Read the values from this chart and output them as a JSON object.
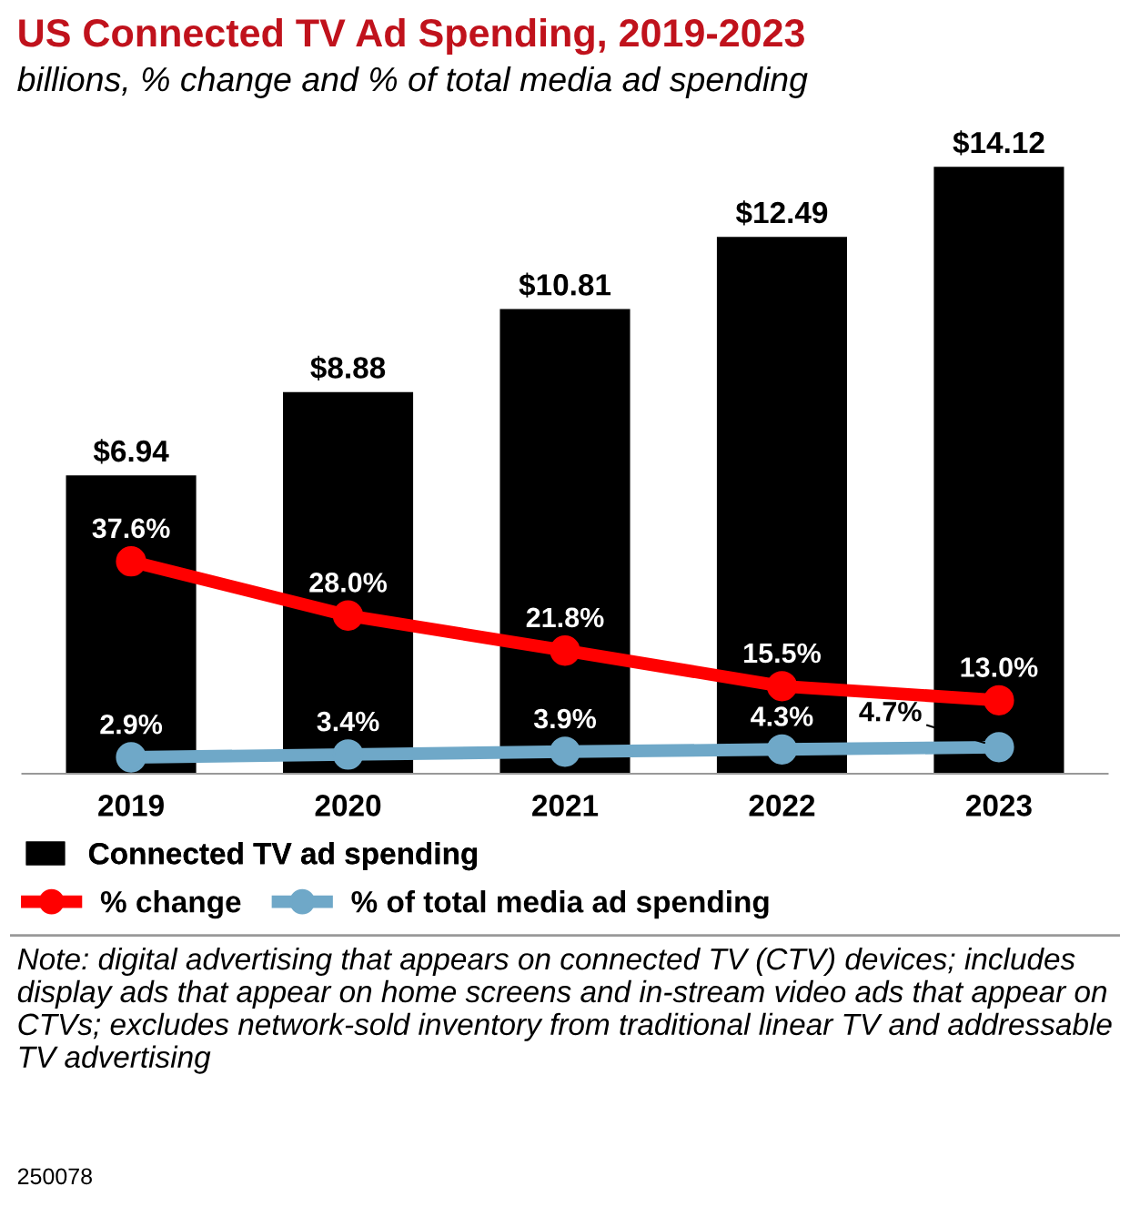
{
  "chart_data": {
    "type": "bar",
    "title": "US Connected TV Ad Spending, 2019-2023",
    "subtitle": "billions, % change and % of total media ad spending",
    "categories": [
      "2019",
      "2020",
      "2021",
      "2022",
      "2023"
    ],
    "series": [
      {
        "name": "Connected TV ad spending",
        "color": "#000000",
        "values": [
          6.94,
          8.88,
          10.81,
          12.49,
          14.12
        ],
        "value_labels": [
          "$6.94",
          "$8.88",
          "$10.81",
          "$12.49",
          "$14.12"
        ]
      },
      {
        "name": "% change",
        "type": "line",
        "axis": "y2",
        "color": "#ff0000",
        "values": [
          37.6,
          28.0,
          21.8,
          15.5,
          13.0
        ],
        "value_labels": [
          "37.6%",
          "28.0%",
          "21.8%",
          "15.5%",
          "13.0%"
        ]
      },
      {
        "name": "% of total media ad spending",
        "type": "line",
        "axis": "y2",
        "color": "#6fa8c8",
        "values": [
          2.9,
          3.4,
          3.9,
          4.3,
          4.7
        ],
        "value_labels": [
          "2.9%",
          "3.4%",
          "3.9%",
          "4.3%",
          "4.7%"
        ]
      }
    ],
    "marker": "circle",
    "line_style": "solid",
    "legend": "bottom",
    "grid": false,
    "annotations": [
      "Note: digital advertising that appears on connected TV (CTV) devices; includes display ads that appear on home screens and in-stream video ads that appear on CTVs; excludes network-sold inventory from traditional linear TV and addressable TV advertising",
      "250078"
    ]
  }
}
